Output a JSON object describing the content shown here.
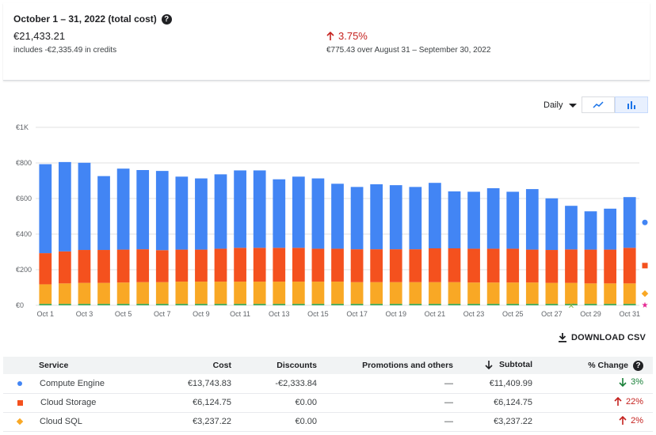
{
  "summary": {
    "title": "October 1 – 31, 2022 (total cost)",
    "total": "€21,433.21",
    "credits_note": "includes -€2,335.49 in credits",
    "change_pct": "3.75%",
    "change_note": "€775.43 over August 31 – September 30, 2022"
  },
  "toolbar": {
    "period": "Daily",
    "views": [
      "line-chart-icon",
      "bar-chart-icon"
    ]
  },
  "download_label": "DOWNLOAD CSV",
  "colors": {
    "compute": "#4285f4",
    "storage": "#f4511e",
    "sql": "#f9a825",
    "other1": "#e8710a",
    "other2": "#34a853",
    "other3": "#e52592"
  },
  "chart_data": {
    "type": "bar",
    "stacked": true,
    "yticks": [
      "€0",
      "€200",
      "€400",
      "€600",
      "€800",
      "€1K"
    ],
    "ylim": [
      0,
      1000
    ],
    "xtick_labels": [
      "Oct 1",
      "Oct 3",
      "Oct 5",
      "Oct 7",
      "Oct 9",
      "Oct 11",
      "Oct 13",
      "Oct 15",
      "Oct 17",
      "Oct 19",
      "Oct 21",
      "Oct 23",
      "Oct 25",
      "Oct 27",
      "Oct 29",
      "Oct 31"
    ],
    "categories": [
      "Oct 1",
      "Oct 2",
      "Oct 3",
      "Oct 4",
      "Oct 5",
      "Oct 6",
      "Oct 7",
      "Oct 8",
      "Oct 9",
      "Oct 10",
      "Oct 11",
      "Oct 12",
      "Oct 13",
      "Oct 14",
      "Oct 15",
      "Oct 16",
      "Oct 17",
      "Oct 18",
      "Oct 19",
      "Oct 20",
      "Oct 21",
      "Oct 22",
      "Oct 23",
      "Oct 24",
      "Oct 25",
      "Oct 26",
      "Oct 27",
      "Oct 28",
      "Oct 29",
      "Oct 30",
      "Oct 31"
    ],
    "series": [
      {
        "key": "other2",
        "values": [
          8,
          8,
          8,
          8,
          8,
          8,
          8,
          8,
          8,
          8,
          8,
          8,
          8,
          8,
          8,
          8,
          8,
          8,
          8,
          8,
          8,
          8,
          8,
          8,
          8,
          8,
          8,
          8,
          8,
          8,
          8
        ]
      },
      {
        "key": "sql",
        "values": [
          110,
          115,
          118,
          118,
          120,
          122,
          122,
          125,
          125,
          125,
          125,
          125,
          125,
          125,
          125,
          125,
          122,
          122,
          122,
          122,
          122,
          122,
          120,
          120,
          120,
          120,
          118,
          118,
          115,
          115,
          115
        ]
      },
      {
        "key": "storage",
        "values": [
          175,
          180,
          185,
          185,
          185,
          185,
          180,
          180,
          180,
          185,
          190,
          190,
          190,
          190,
          185,
          185,
          185,
          185,
          185,
          185,
          190,
          190,
          190,
          190,
          190,
          185,
          185,
          188,
          190,
          190,
          200
        ]
      },
      {
        "key": "compute",
        "values": [
          500,
          502,
          490,
          415,
          455,
          445,
          445,
          410,
          400,
          418,
          435,
          435,
          385,
          400,
          395,
          365,
          350,
          365,
          360,
          350,
          368,
          320,
          320,
          340,
          320,
          340,
          290,
          245,
          215,
          230,
          285
        ]
      }
    ],
    "end_markers": [
      "compute",
      "storage",
      "sql",
      "other3"
    ]
  },
  "table": {
    "headers": {
      "service": "Service",
      "cost": "Cost",
      "discounts": "Discounts",
      "promotions": "Promotions and others",
      "subtotal": "Subtotal",
      "change": "% Change"
    },
    "rows": [
      {
        "service": "Compute Engine",
        "cost": "€13,743.83",
        "discounts": "-€2,333.84",
        "promotions": "—",
        "subtotal": "€11,409.99",
        "change": "3%",
        "direction": "down",
        "marker": "dot",
        "color": "#4285f4"
      },
      {
        "service": "Cloud Storage",
        "cost": "€6,124.75",
        "discounts": "€0.00",
        "promotions": "—",
        "subtotal": "€6,124.75",
        "change": "22%",
        "direction": "up",
        "marker": "square",
        "color": "#f4511e"
      },
      {
        "service": "Cloud SQL",
        "cost": "€3,237.22",
        "discounts": "€0.00",
        "promotions": "—",
        "subtotal": "€3,237.22",
        "change": "2%",
        "direction": "up",
        "marker": "diamond",
        "color": "#f9a825"
      }
    ]
  }
}
